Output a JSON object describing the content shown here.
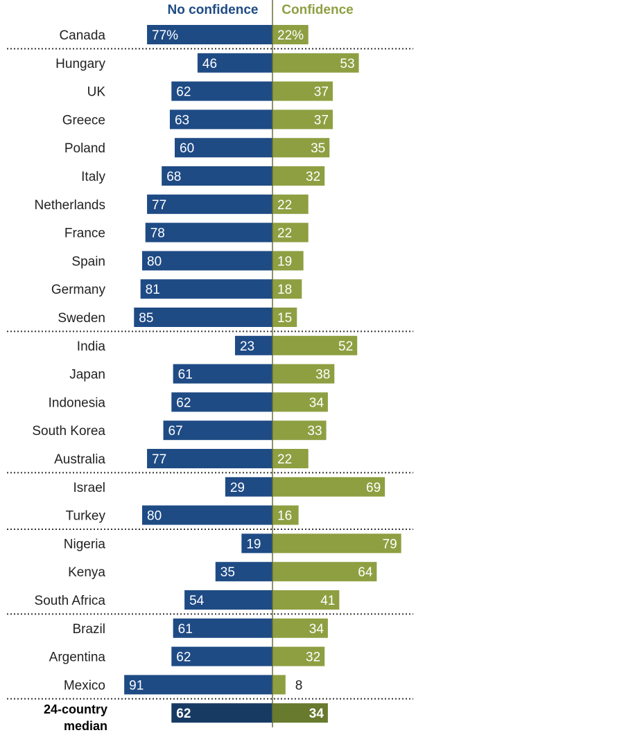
{
  "colors": {
    "no_confidence": "#1F4B85",
    "confidence": "#8E9F42",
    "no_confidence_median": "#173A63",
    "confidence_median": "#687A2E",
    "separator": "#333333",
    "axis": "#6b6b3a"
  },
  "chart_data": {
    "type": "bar",
    "orientation": "diverging-horizontal",
    "legend": [
      "No confidence",
      "Confidence"
    ],
    "categories": [
      "Canada",
      "Hungary",
      "UK",
      "Greece",
      "Poland",
      "Italy",
      "Netherlands",
      "France",
      "Spain",
      "Germany",
      "Sweden",
      "India",
      "Japan",
      "Indonesia",
      "South Korea",
      "Australia",
      "Israel",
      "Turkey",
      "Nigeria",
      "Kenya",
      "South Africa",
      "Brazil",
      "Argentina",
      "Mexico",
      "24-country median"
    ],
    "series": [
      {
        "name": "No confidence",
        "values": [
          77,
          46,
          62,
          63,
          60,
          68,
          77,
          78,
          80,
          81,
          85,
          23,
          61,
          62,
          67,
          77,
          29,
          80,
          19,
          35,
          54,
          61,
          62,
          91,
          62
        ]
      },
      {
        "name": "Confidence",
        "values": [
          22,
          53,
          37,
          37,
          35,
          32,
          22,
          22,
          19,
          18,
          15,
          52,
          38,
          34,
          33,
          22,
          69,
          16,
          79,
          64,
          41,
          34,
          32,
          8,
          34
        ]
      }
    ],
    "value_labels": {
      "no_confidence": [
        "77%",
        "46",
        "62",
        "63",
        "60",
        "68",
        "77",
        "78",
        "80",
        "81",
        "85",
        "23",
        "61",
        "62",
        "67",
        "77",
        "29",
        "80",
        "19",
        "35",
        "54",
        "61",
        "62",
        "91",
        "62"
      ],
      "confidence": [
        "22%",
        "53",
        "37",
        "37",
        "35",
        "32",
        "22",
        "22",
        "19",
        "18",
        "15",
        "52",
        "38",
        "34",
        "33",
        "22",
        "69",
        "16",
        "79",
        "64",
        "41",
        "34",
        "32",
        "8",
        "34"
      ]
    },
    "median_label_lines": [
      "24-country",
      "median"
    ],
    "region_breaks_after": [
      "Canada",
      "Sweden",
      "Australia",
      "Turkey",
      "South Africa",
      "Mexico"
    ]
  }
}
